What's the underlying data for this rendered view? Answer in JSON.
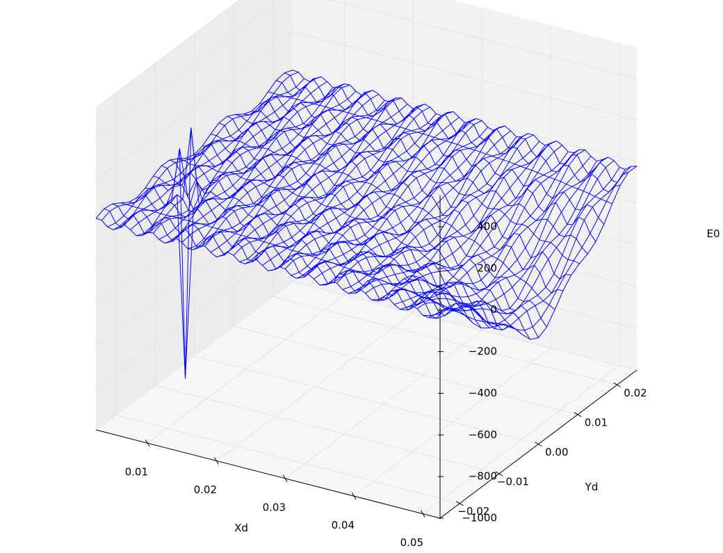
{
  "chart_data": {
    "type": "wireframe-3d",
    "title": "",
    "xlabel": "Xd",
    "ylabel": "Yd",
    "zlabel": "E0",
    "xlim": [
      0.0025,
      0.0525
    ],
    "ylim": [
      -0.025,
      0.025
    ],
    "zlim": [
      -1000,
      550
    ],
    "x_ticks": [
      0.01,
      0.02,
      0.03,
      0.04,
      0.05
    ],
    "x_tick_labels": [
      "0.01",
      "0.02",
      "0.03",
      "0.04",
      "0.05"
    ],
    "y_ticks": [
      -0.02,
      -0.01,
      0.0,
      0.01,
      0.02
    ],
    "y_tick_labels": [
      "−0.02",
      "−0.01",
      "0.00",
      "0.01",
      "0.02"
    ],
    "z_ticks": [
      -1000,
      -800,
      -600,
      -400,
      -200,
      0,
      200,
      400
    ],
    "z_tick_labels": [
      "−1000",
      "−800",
      "−600",
      "−400",
      "−200",
      "0",
      "200",
      "400"
    ],
    "grid": true,
    "surface_color": "#0000ff",
    "pane_colors": [
      "#f2f2f2",
      "#ececec",
      "#f6f6f6"
    ],
    "surface_summary": {
      "x_range": [
        0.0025,
        0.0525
      ],
      "y_range": [
        -0.025,
        0.025
      ],
      "grid_size": [
        60,
        24
      ],
      "background_level": 0,
      "ripple_amplitude": 40,
      "trough_center": [
        0.047,
        0.0
      ],
      "trough_depth": -450,
      "spike_location": [
        0.0085,
        -0.012
      ],
      "spike_max": 520,
      "spike_min": -980
    }
  }
}
